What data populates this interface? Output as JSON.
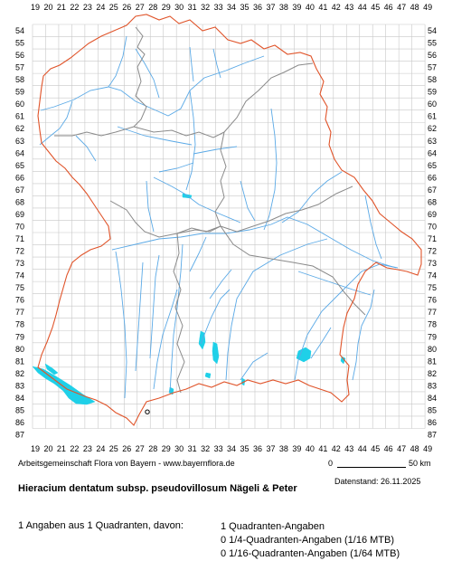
{
  "map": {
    "x_ticks": [
      "19",
      "20",
      "21",
      "22",
      "23",
      "24",
      "25",
      "26",
      "27",
      "28",
      "29",
      "30",
      "31",
      "32",
      "33",
      "34",
      "35",
      "36",
      "37",
      "38",
      "39",
      "40",
      "41",
      "42",
      "43",
      "44",
      "45",
      "46",
      "47",
      "48",
      "49"
    ],
    "y_ticks": [
      "54",
      "55",
      "56",
      "57",
      "58",
      "59",
      "60",
      "61",
      "62",
      "63",
      "64",
      "65",
      "66",
      "67",
      "68",
      "69",
      "70",
      "71",
      "72",
      "73",
      "74",
      "75",
      "76",
      "77",
      "78",
      "79",
      "80",
      "81",
      "82",
      "83",
      "84",
      "85",
      "86",
      "87"
    ],
    "colors": {
      "grid": "#c8c8c8",
      "border": "#e0542a",
      "district": "#8a8a8a",
      "river": "#5aa9e6",
      "lake": "#1fd0e8",
      "marker": "#000000"
    },
    "occurrences": [
      {
        "grid_x": "27",
        "grid_y": "85",
        "symbol": "open-circle"
      }
    ]
  },
  "footer": {
    "organization": "Arbeitsgemeinschaft Flora von Bayern - www.bayernflora.de",
    "scale_zero": "0",
    "scale_label": "50 km",
    "date": "Datenstand: 26.11.2025",
    "title": "Hieracium dentatum subsp. pseudovillosum Nägeli & Peter",
    "summary": "1 Angaben aus 1 Quadranten, davon:",
    "stats": [
      "1 Quadranten-Angaben",
      "0 1/4-Quadranten-Angaben (1/16 MTB)",
      "0 1/16-Quadranten-Angaben (1/64 MTB)"
    ]
  }
}
